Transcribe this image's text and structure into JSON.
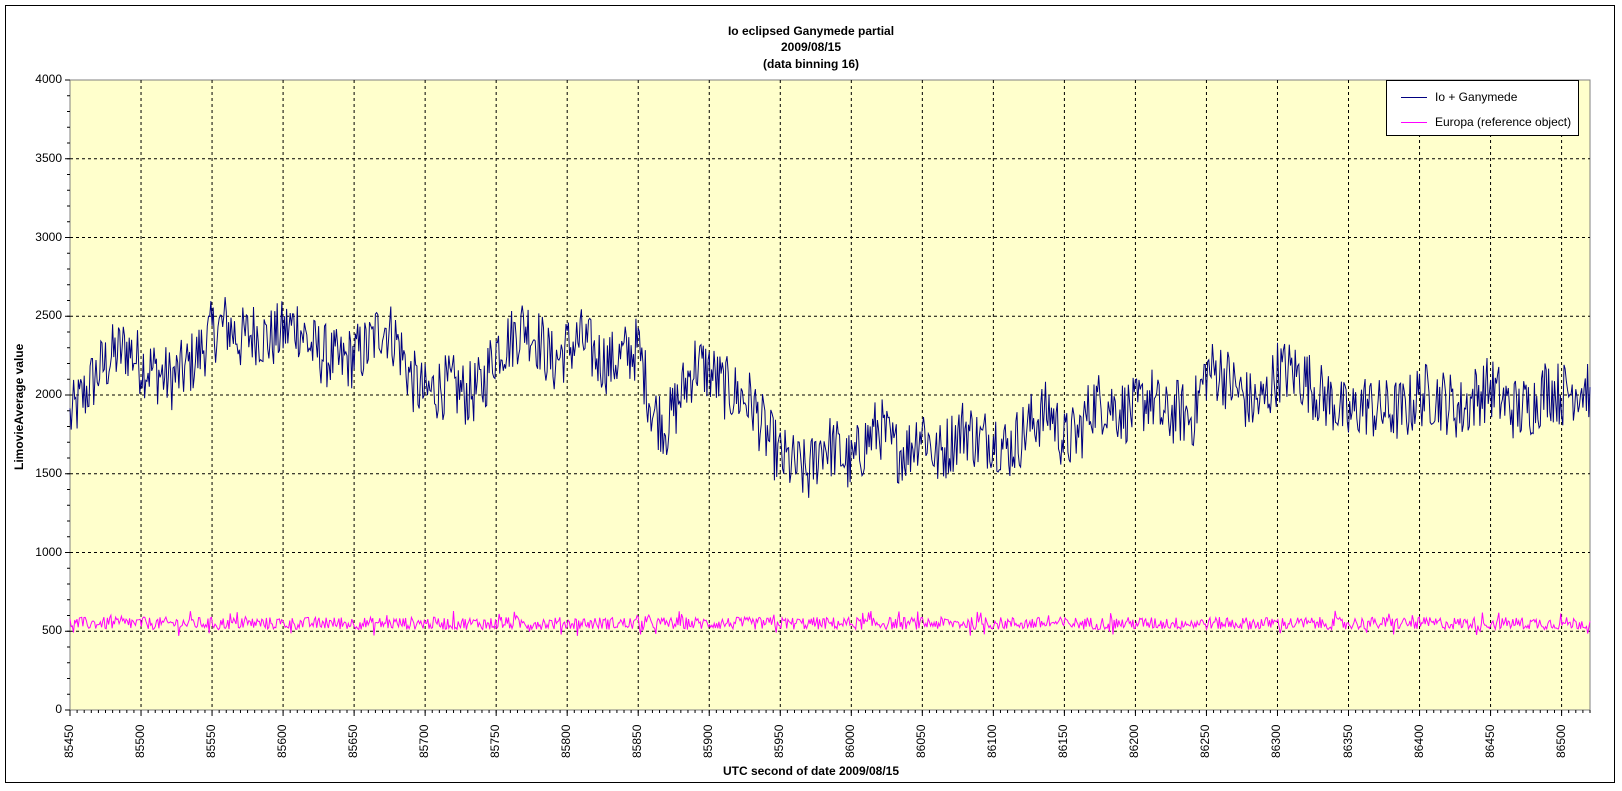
{
  "chart_data": {
    "type": "line",
    "title": [
      "Io eclipsed Ganymede partial",
      "2009/08/15",
      "(data binning 16)"
    ],
    "xlabel": "UTC second  of date 2009/08/15",
    "ylabel": "LimovieAverage value",
    "xlim": [
      85450,
      86520
    ],
    "ylim": [
      0,
      4000
    ],
    "x_ticks": [
      "85450",
      "85500",
      "85550",
      "85600",
      "85650",
      "85700",
      "85750",
      "85800",
      "85850",
      "85900",
      "85950",
      "86000",
      "86050",
      "86100",
      "86150",
      "86200",
      "86250",
      "86300",
      "86350",
      "86400",
      "86450",
      "86500"
    ],
    "y_ticks": [
      "0",
      "500",
      "1000",
      "1500",
      "2000",
      "2500",
      "3000",
      "3500",
      "4000"
    ],
    "grid": true,
    "plot_background": "#ffffcc",
    "legend_position": "top-right",
    "series": [
      {
        "name": "Io + Ganymede",
        "color": "#000080",
        "x": [
          85450,
          85460,
          85470,
          85480,
          85490,
          85500,
          85510,
          85520,
          85530,
          85540,
          85550,
          85560,
          85570,
          85580,
          85590,
          85600,
          85610,
          85620,
          85630,
          85640,
          85650,
          85660,
          85670,
          85680,
          85690,
          85700,
          85710,
          85720,
          85730,
          85740,
          85750,
          85760,
          85770,
          85780,
          85790,
          85800,
          85810,
          85820,
          85830,
          85840,
          85850,
          85860,
          85870,
          85880,
          85890,
          85900,
          85910,
          85920,
          85930,
          85940,
          85950,
          85960,
          85970,
          85980,
          85990,
          86000,
          86010,
          86020,
          86030,
          86040,
          86050,
          86060,
          86070,
          86080,
          86090,
          86100,
          86110,
          86120,
          86130,
          86140,
          86150,
          86160,
          86170,
          86180,
          86190,
          86200,
          86210,
          86220,
          86230,
          86240,
          86250,
          86260,
          86270,
          86280,
          86290,
          86300,
          86310,
          86320,
          86330,
          86340,
          86350,
          86360,
          86370,
          86380,
          86390,
          86400,
          86410,
          86420,
          86430,
          86440,
          86450,
          86460,
          86470,
          86480,
          86490,
          86500,
          86510,
          86520
        ],
        "y": [
          1850,
          2000,
          2150,
          2250,
          2300,
          2200,
          2150,
          2100,
          2150,
          2250,
          2400,
          2450,
          2350,
          2400,
          2350,
          2400,
          2450,
          2300,
          2250,
          2200,
          2250,
          2300,
          2450,
          2350,
          2100,
          2000,
          2050,
          2050,
          2000,
          2050,
          2300,
          2350,
          2450,
          2350,
          2200,
          2300,
          2350,
          2250,
          2200,
          2250,
          2300,
          1900,
          1800,
          2000,
          2200,
          2150,
          2050,
          2000,
          1950,
          1750,
          1600,
          1550,
          1500,
          1700,
          1650,
          1550,
          1700,
          1800,
          1650,
          1650,
          1800,
          1600,
          1700,
          1800,
          1700,
          1750,
          1650,
          1750,
          1850,
          1900,
          1700,
          1750,
          1950,
          1950,
          1900,
          1900,
          2000,
          1850,
          1900,
          1850,
          2150,
          2150,
          2050,
          1950,
          1950,
          2150,
          2150,
          2100,
          2000,
          1950,
          1850,
          1950,
          1900,
          1900,
          1900,
          2000,
          2000,
          1950,
          1900,
          2000,
          2050,
          1950,
          1900,
          1950,
          2050,
          2000,
          2050,
          2050
        ]
      },
      {
        "name": "Europa (reference object)",
        "color": "#ff00ff",
        "x_range": [
          85450,
          86520
        ],
        "mean": 550,
        "spread": 40
      }
    ]
  }
}
